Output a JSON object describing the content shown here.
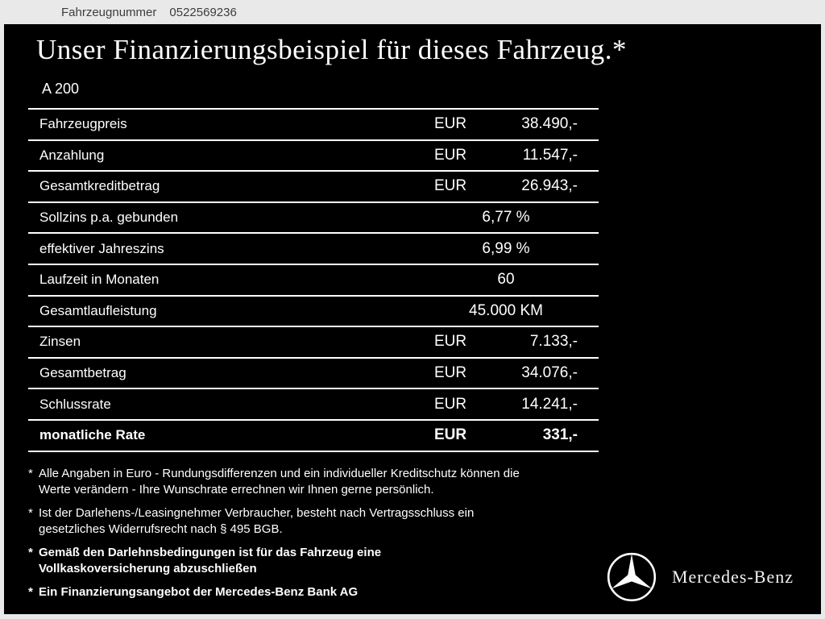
{
  "header": {
    "label": "Fahrzeugnummer",
    "number": "0522569236"
  },
  "title": "Unser Finanzierungsbeispiel für dieses Fahrzeug.*",
  "model": "A 200",
  "finance_table": {
    "rows": [
      {
        "label": "Fahrzeugpreis",
        "currency": "EUR",
        "amount": "38.490,-"
      },
      {
        "label": "Anzahlung",
        "currency": "EUR",
        "amount": "11.547,-"
      },
      {
        "label": "Gesamtkreditbetrag",
        "currency": "EUR",
        "amount": "26.943,-"
      },
      {
        "label": "Sollzins p.a. gebunden",
        "value": "6,77 %"
      },
      {
        "label": "effektiver Jahreszins",
        "value": "6,99 %"
      },
      {
        "label": "Laufzeit in Monaten",
        "value": "60"
      },
      {
        "label": "Gesamtlaufleistung",
        "value": "45.000 KM"
      },
      {
        "label": "Zinsen",
        "currency": "EUR",
        "amount": "7.133,-"
      },
      {
        "label": "Gesamtbetrag",
        "currency": "EUR",
        "amount": "34.076,-"
      },
      {
        "label": "Schlussrate",
        "currency": "EUR",
        "amount": "14.241,-"
      },
      {
        "label": "monatliche Rate",
        "currency": "EUR",
        "amount": "331,-",
        "bold": true
      }
    ]
  },
  "footnotes": [
    {
      "marker": "*",
      "bold": false,
      "lines": [
        "Alle Angaben in Euro - Rundungsdifferenzen und ein individueller Kreditschutz können die",
        "Werte verändern - Ihre Wunschrate errechnen wir Ihnen gerne persönlich."
      ]
    },
    {
      "marker": "*",
      "bold": false,
      "lines": [
        "Ist der Darlehens-/Leasingnehmer Verbraucher, besteht nach Vertragsschluss ein",
        "gesetzliches Widerrufsrecht nach § 495 BGB."
      ]
    },
    {
      "marker": "*",
      "bold": true,
      "lines": [
        "Gemäß den Darlehnsbedingungen ist für das Fahrzeug eine",
        "Vollkaskoversicherung abzuschließen"
      ]
    },
    {
      "marker": "*",
      "bold": true,
      "lines": [
        "Ein Finanzierungsangebot der Mercedes-Benz Bank AG"
      ]
    }
  ],
  "brand": {
    "wordmark": "Mercedes-Benz",
    "logo_icon": "mercedes-star-icon"
  },
  "colors": {
    "panel_background": "#000000",
    "frame": "#e9e9e9",
    "text": "#ffffff",
    "header_text": "#3c3c3c"
  }
}
